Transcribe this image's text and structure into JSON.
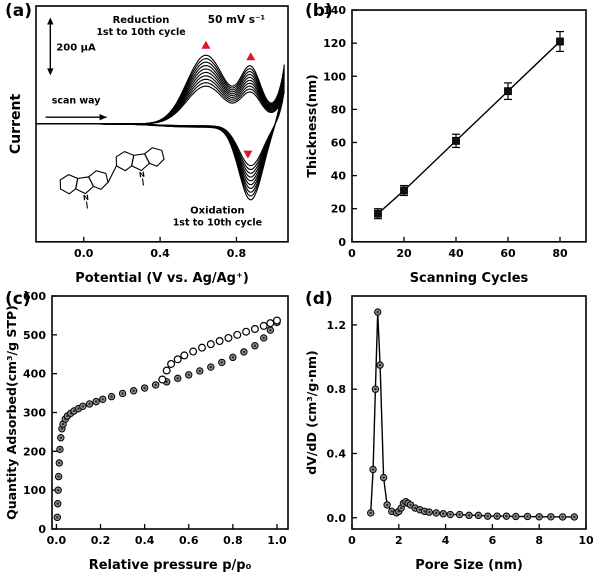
{
  "figure": {
    "background": "#ffffff",
    "panels": [
      {
        "id": "a",
        "label": "(a)"
      },
      {
        "id": "b",
        "label": "(b)"
      },
      {
        "id": "c",
        "label": "(c)"
      },
      {
        "id": "d",
        "label": "(d)"
      }
    ]
  },
  "colors": {
    "ink": "#000000",
    "accent_red": "#e01424",
    "marker_gray": "#8c8c8c",
    "marker_open": "#ffffff"
  },
  "chart_data": [
    {
      "type": "line",
      "panel": "a",
      "description": "Cyclic voltammograms, 1st to 10th electropolymerization cycles",
      "xlabel": "Potential (V vs.  Ag/Ag⁺)",
      "ylabel": "Current",
      "xlim": [
        -0.25,
        1.07
      ],
      "xticks": [
        0.0,
        0.4,
        0.8
      ],
      "xtick_decimals": 1,
      "cycles": 10,
      "reduction_peaks_V": [
        0.64,
        0.875
      ],
      "oxidation_peak_V": 0.86,
      "annotations": {
        "reduction_line1": "Reduction",
        "reduction_line2": "1st to 10th cycle",
        "scan_rate": "50 mV s⁻¹",
        "scan_way": "scan way",
        "scale_bar": "200 μA",
        "oxidation_line1": "Oxidation",
        "oxidation_line2": "1st to 10th cycle"
      },
      "inset": "bicarbazole-molecular-structure"
    },
    {
      "type": "scatter",
      "panel": "b",
      "xlabel": "Scanning Cycles",
      "ylabel": "Thickness(nm)",
      "xlim": [
        0,
        90
      ],
      "ylim": [
        0,
        140
      ],
      "xticks": [
        0,
        20,
        40,
        60,
        80
      ],
      "yticks": [
        0,
        20,
        40,
        60,
        80,
        100,
        120,
        140
      ],
      "xtick_decimals": 0,
      "ytick_decimals": 0,
      "x": [
        10,
        20,
        40,
        60,
        80
      ],
      "y": [
        17,
        31,
        61,
        91,
        121
      ],
      "yerr": [
        3,
        3,
        4,
        5,
        6
      ],
      "line": true,
      "marker": "square"
    },
    {
      "type": "scatter",
      "panel": "c",
      "xlabel": "Relative pressure p/p₀",
      "ylabel": "Quantity Adsorbed(cm³/g STP)",
      "xlim": [
        -0.02,
        1.05
      ],
      "ylim": [
        0,
        600
      ],
      "xticks": [
        0.0,
        0.2,
        0.4,
        0.6,
        0.8,
        1.0
      ],
      "yticks": [
        0,
        100,
        200,
        300,
        400,
        500,
        600
      ],
      "xtick_decimals": 1,
      "ytick_decimals": 0,
      "series": [
        {
          "name": "adsorption",
          "marker": "ball",
          "x": [
            0.004,
            0.006,
            0.008,
            0.01,
            0.013,
            0.016,
            0.02,
            0.025,
            0.03,
            0.04,
            0.05,
            0.065,
            0.08,
            0.1,
            0.12,
            0.15,
            0.18,
            0.21,
            0.25,
            0.3,
            0.35,
            0.4,
            0.45,
            0.5,
            0.55,
            0.6,
            0.65,
            0.7,
            0.75,
            0.8,
            0.85,
            0.9,
            0.94,
            0.97,
            1.0
          ],
          "y": [
            30,
            65,
            100,
            135,
            170,
            205,
            235,
            258,
            270,
            283,
            291,
            298,
            304,
            310,
            316,
            322,
            328,
            334,
            341,
            349,
            356,
            363,
            371,
            379,
            388,
            397,
            407,
            417,
            429,
            442,
            456,
            472,
            492,
            512,
            532
          ]
        },
        {
          "name": "desorption",
          "marker": "open",
          "x": [
            1.0,
            0.97,
            0.94,
            0.9,
            0.86,
            0.82,
            0.78,
            0.74,
            0.7,
            0.66,
            0.62,
            0.58,
            0.55,
            0.52,
            0.5,
            0.48
          ],
          "y": [
            537,
            530,
            523,
            515,
            508,
            500,
            492,
            484,
            476,
            467,
            457,
            447,
            437,
            425,
            408,
            385
          ]
        }
      ]
    },
    {
      "type": "line",
      "panel": "d",
      "xlabel": "Pore Size (nm)",
      "ylabel": "dV/dD (cm³/g·nm)",
      "xlim": [
        0,
        10
      ],
      "ylim": [
        -0.07,
        1.38
      ],
      "xticks": [
        0,
        2,
        4,
        6,
        8,
        10
      ],
      "yticks": [
        0.0,
        0.4,
        0.8,
        1.2
      ],
      "xtick_decimals": 0,
      "ytick_decimals": 1,
      "series": [
        {
          "name": "pore-size-distribution",
          "marker": "ball",
          "line": true,
          "x": [
            0.8,
            0.9,
            1.0,
            1.1,
            1.2,
            1.35,
            1.5,
            1.7,
            1.9,
            2.0,
            2.1,
            2.2,
            2.3,
            2.4,
            2.5,
            2.7,
            2.9,
            3.1,
            3.3,
            3.6,
            3.9,
            4.2,
            4.6,
            5.0,
            5.4,
            5.8,
            6.2,
            6.6,
            7.0,
            7.5,
            8.0,
            8.5,
            9.0,
            9.5
          ],
          "y": [
            0.03,
            0.3,
            0.8,
            1.28,
            0.95,
            0.25,
            0.08,
            0.04,
            0.03,
            0.04,
            0.06,
            0.09,
            0.1,
            0.09,
            0.08,
            0.06,
            0.05,
            0.04,
            0.035,
            0.03,
            0.025,
            0.02,
            0.02,
            0.015,
            0.015,
            0.01,
            0.01,
            0.01,
            0.008,
            0.008,
            0.006,
            0.006,
            0.005,
            0.005
          ]
        }
      ]
    }
  ]
}
